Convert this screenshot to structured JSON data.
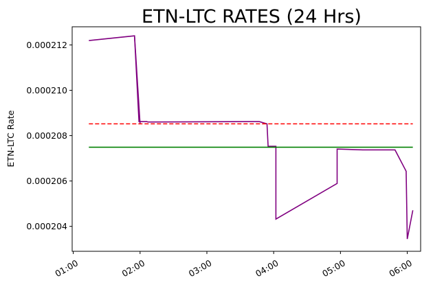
{
  "chart_data": {
    "type": "line",
    "title": "ETN-LTC RATES (24 Hrs)",
    "ylabel": "ETN-LTC Rate",
    "xlabel": "",
    "x_axis": "time",
    "xlim": [
      "00:59",
      "06:12"
    ],
    "ylim": [
      0.0002029,
      0.0002128
    ],
    "xticks": [
      "01:00",
      "02:00",
      "03:00",
      "04:00",
      "05:00",
      "06:00"
    ],
    "xtick_values": [
      "01:00",
      "02:00",
      "03:00",
      "04:00",
      "05:00",
      "06:00"
    ],
    "yticks": [
      0.000204,
      0.000206,
      0.000208,
      0.00021,
      0.000212
    ],
    "ytick_labels": [
      "0.000204",
      "0.000206",
      "0.000208",
      "0.000210",
      "0.000212"
    ],
    "grid": false,
    "series": [
      {
        "style": "solid",
        "color": "#800080",
        "x": [
          "01:14",
          "01:55",
          "01:59",
          "02:06",
          "02:07",
          "03:38",
          "03:40",
          "03:47",
          "03:54",
          "03:55",
          "03:58",
          "04:02",
          "04:02",
          "04:57",
          "04:57",
          "05:20",
          "05:49",
          "05:59",
          "06:00",
          "06:05"
        ],
        "y": [
          0.000212192,
          0.000212401,
          0.00020862,
          0.00020862,
          0.0002086,
          0.00020862,
          0.00020862,
          0.00020862,
          0.00020852,
          0.00020753,
          0.00020753,
          0.00020753,
          0.000204321,
          0.000205892,
          0.00020741,
          0.00020737,
          0.00020737,
          0.00020643,
          0.000203442,
          0.00020471
        ]
      },
      {
        "style": "solid",
        "color": "#800080",
        "x": [
          "01:55",
          "02:00"
        ],
        "y": [
          0.000212401,
          0.00020852
        ]
      },
      {
        "style": "dashed",
        "color": "#ff0000",
        "x": [
          "01:14",
          "06:05"
        ],
        "y": [
          0.00020852,
          0.00020852
        ]
      },
      {
        "style": "solid",
        "color": "#008000",
        "x": [
          "01:14",
          "06:05"
        ],
        "y": [
          0.00020749,
          0.00020749
        ]
      }
    ]
  }
}
